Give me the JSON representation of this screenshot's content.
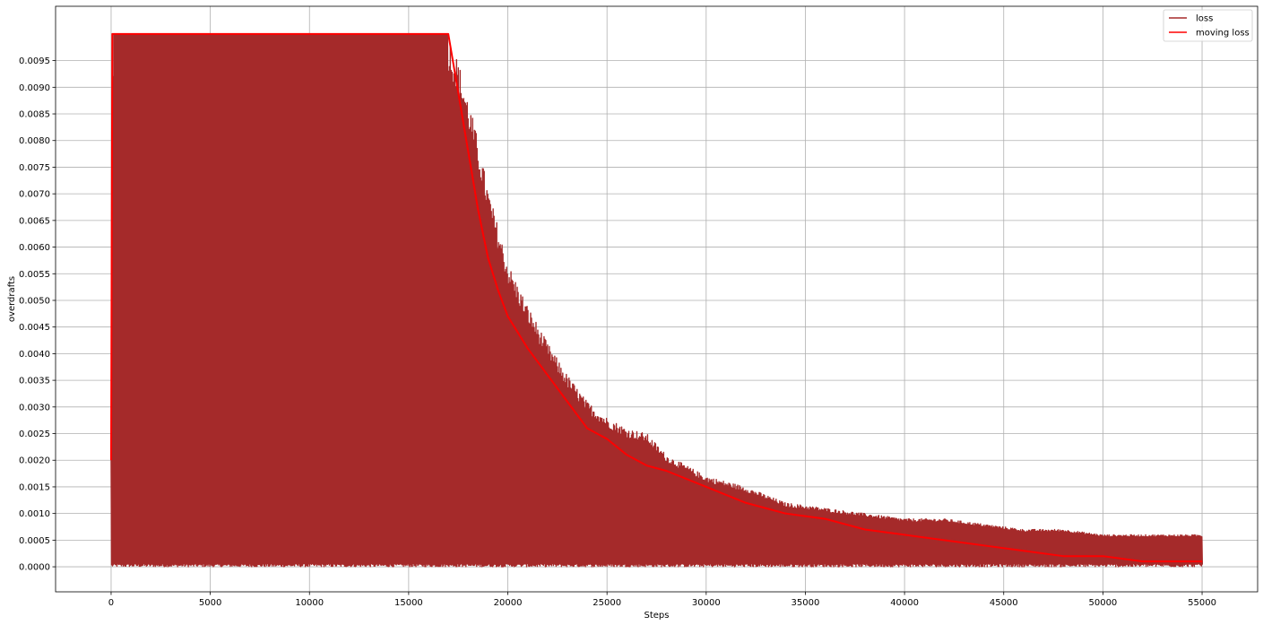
{
  "chart_data": {
    "type": "line",
    "xlabel": "Steps",
    "ylabel": "overdrafts",
    "xlim": [
      -2800,
      57800
    ],
    "ylim": [
      -0.00047,
      0.01052
    ],
    "xticks": [
      0,
      5000,
      10000,
      15000,
      20000,
      25000,
      30000,
      35000,
      40000,
      45000,
      50000,
      55000
    ],
    "yticks": [
      0.0,
      0.0005,
      0.001,
      0.0015,
      0.002,
      0.0025,
      0.003,
      0.0035,
      0.004,
      0.0045,
      0.005,
      0.0055,
      0.006,
      0.0065,
      0.007,
      0.0075,
      0.008,
      0.0085,
      0.009,
      0.0095
    ],
    "ytick_labels": [
      "0.0000",
      "0.0005",
      "0.0010",
      "0.0015",
      "0.0020",
      "0.0025",
      "0.0030",
      "0.0035",
      "0.0040",
      "0.0045",
      "0.0050",
      "0.0055",
      "0.0060",
      "0.0065",
      "0.0070",
      "0.0075",
      "0.0080",
      "0.0085",
      "0.0090",
      "0.0095"
    ],
    "grid": true,
    "legend_position": "top-right",
    "series": [
      {
        "name": "loss",
        "color": "#a52a2a",
        "rendering": "dense oscillating envelope between a near-zero floor and an upper bound",
        "upper_envelope": {
          "x": [
            0,
            100,
            17000,
            17500,
            18000,
            18500,
            19000,
            19500,
            20000,
            21000,
            22000,
            23000,
            24000,
            25000,
            26000,
            27000,
            28000,
            30000,
            32000,
            34000,
            36000,
            38000,
            40000,
            42000,
            44000,
            46000,
            48000,
            50000,
            52000,
            54000,
            55000
          ],
          "y": [
            0.002,
            0.01,
            0.01,
            0.0095,
            0.0088,
            0.008,
            0.0071,
            0.0064,
            0.0057,
            0.0049,
            0.0042,
            0.0036,
            0.0031,
            0.0028,
            0.0026,
            0.0025,
            0.0021,
            0.0017,
            0.0015,
            0.0012,
            0.0011,
            0.001,
            0.0009,
            0.0009,
            0.0008,
            0.0007,
            0.0007,
            0.0006,
            0.0006,
            0.0006,
            0.0006
          ]
        },
        "lower_bound": 0.0
      },
      {
        "name": "moving loss",
        "color": "#ff0000",
        "x": [
          0,
          60,
          17000,
          17500,
          18000,
          18500,
          19000,
          19500,
          20000,
          21000,
          22000,
          23000,
          24000,
          25000,
          26000,
          27000,
          28000,
          30000,
          32000,
          34000,
          36000,
          37000,
          38000,
          40000,
          42000,
          44000,
          46000,
          48000,
          50000,
          52000,
          54000,
          55000
        ],
        "y": [
          0.002,
          0.01,
          0.01,
          0.0089,
          0.0078,
          0.0067,
          0.0058,
          0.0052,
          0.0047,
          0.0041,
          0.0036,
          0.0031,
          0.0026,
          0.0024,
          0.0021,
          0.0019,
          0.0018,
          0.0015,
          0.0012,
          0.001,
          0.0009,
          0.0008,
          0.0007,
          0.0006,
          0.0005,
          0.0004,
          0.0003,
          0.0002,
          0.0002,
          0.0001,
          0.0001,
          0.0001
        ]
      }
    ]
  }
}
